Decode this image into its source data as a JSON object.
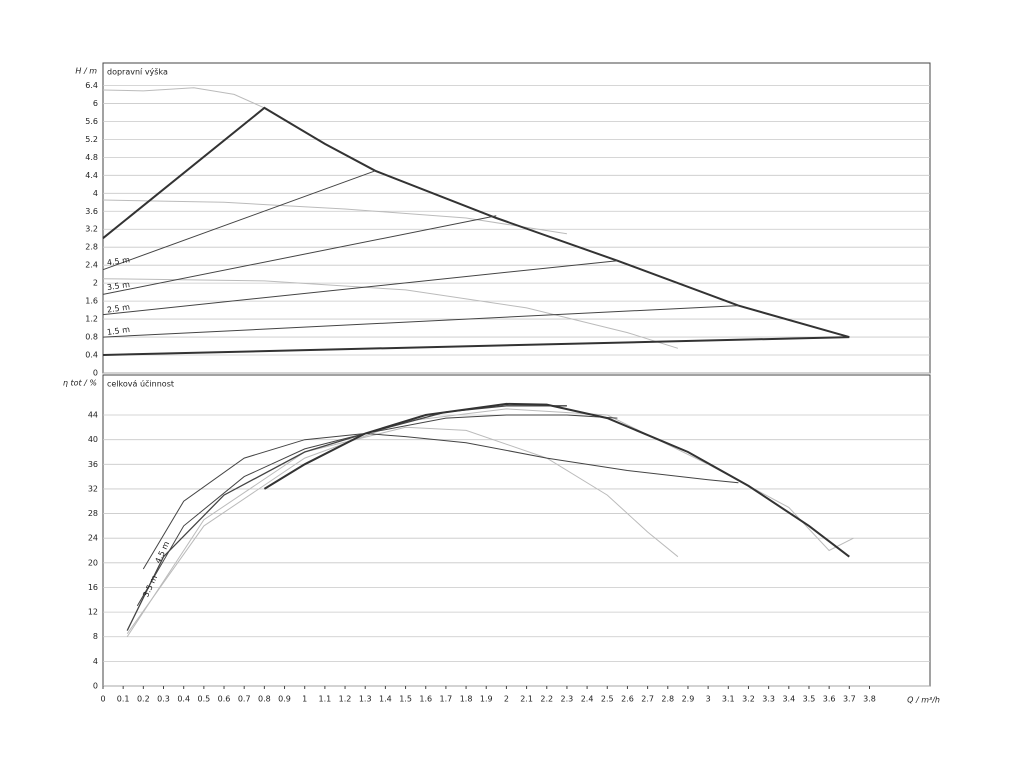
{
  "chart_data": [
    {
      "type": "line",
      "title": "dopravní výška",
      "y_label": "H / m",
      "xlim": [
        0,
        4.1
      ],
      "ylim": [
        0,
        6.9
      ],
      "yticks": [
        0,
        0.4,
        0.8,
        1.2,
        1.6,
        2,
        2.4,
        2.8,
        3.2,
        3.6,
        4,
        4.4,
        4.8,
        5.2,
        5.6,
        6,
        6.4
      ],
      "grid": true,
      "series": [
        {
          "color": "#bbbbbb",
          "width": 1,
          "x": [
            0,
            0.2,
            0.45,
            0.65,
            0.8
          ],
          "values": [
            6.3,
            6.28,
            6.35,
            6.2,
            5.9
          ]
        },
        {
          "color": "#bbbbbb",
          "width": 1,
          "x": [
            0,
            0.6,
            1.2,
            1.8,
            2.3
          ],
          "values": [
            3.85,
            3.8,
            3.65,
            3.45,
            3.1
          ]
        },
        {
          "color": "#bbbbbb",
          "width": 1,
          "x": [
            0,
            0.8,
            1.5,
            2.1,
            2.6,
            2.85
          ],
          "values": [
            2.1,
            2.05,
            1.85,
            1.45,
            0.9,
            0.55
          ]
        },
        {
          "color": "#333333",
          "width": 2,
          "x": [
            0,
            0.8,
            1.1,
            1.35,
            1.95,
            2.55,
            3.15,
            3.7
          ],
          "values": [
            3.0,
            5.9,
            5.1,
            4.5,
            3.45,
            2.5,
            1.5,
            0.8
          ]
        },
        {
          "color": "#444444",
          "width": 1,
          "x": [
            0,
            1.35
          ],
          "values": [
            2.3,
            4.5
          ]
        },
        {
          "color": "#444444",
          "width": 1,
          "x": [
            0,
            1.95
          ],
          "values": [
            1.75,
            3.5
          ]
        },
        {
          "color": "#444444",
          "width": 1,
          "x": [
            0,
            2.55
          ],
          "values": [
            1.3,
            2.5
          ]
        },
        {
          "color": "#444444",
          "width": 1,
          "x": [
            0,
            3.15
          ],
          "values": [
            0.8,
            1.5
          ]
        },
        {
          "color": "#333333",
          "width": 2,
          "x": [
            0,
            3.7
          ],
          "values": [
            0.4,
            0.8
          ]
        }
      ],
      "annotations": [
        {
          "text": "4.5 m",
          "x": 0.02,
          "y": 2.45
        },
        {
          "text": "3.5 m",
          "x": 0.02,
          "y": 1.9
        },
        {
          "text": "2.5 m",
          "x": 0.02,
          "y": 1.4
        },
        {
          "text": "1.5 m",
          "x": 0.02,
          "y": 0.9
        }
      ]
    },
    {
      "type": "line",
      "title": "celková účinnost",
      "y_label": "η tot / %",
      "x_label": "Q / m³/h",
      "xlim": [
        0,
        4.1
      ],
      "ylim": [
        0,
        50.5
      ],
      "yticks": [
        0,
        4,
        8,
        12,
        16,
        20,
        24,
        28,
        32,
        36,
        40,
        44
      ],
      "xticks": [
        0,
        0.1,
        0.2,
        0.3,
        0.4,
        0.5,
        0.6,
        0.7,
        0.8,
        0.9,
        1,
        1.1,
        1.2,
        1.3,
        1.4,
        1.5,
        1.6,
        1.7,
        1.8,
        1.9,
        2,
        2.1,
        2.2,
        2.3,
        2.4,
        2.5,
        2.6,
        2.7,
        2.8,
        2.9,
        3,
        3.1,
        3.2,
        3.3,
        3.4,
        3.5,
        3.6,
        3.7,
        3.8
      ],
      "grid": true,
      "series": [
        {
          "color": "#bbbbbb",
          "width": 1,
          "x": [
            0.12,
            0.5,
            1,
            1.5,
            1.8,
            2.2,
            2.5,
            2.7,
            2.85
          ],
          "values": [
            8,
            27,
            38,
            42,
            41.5,
            37,
            31,
            25,
            21
          ]
        },
        {
          "color": "#bbbbbb",
          "width": 1,
          "x": [
            0.12,
            0.5,
            1,
            1.5,
            2,
            2.5,
            3,
            3.4,
            3.6,
            3.72
          ],
          "values": [
            8.5,
            26,
            37,
            43,
            45,
            44,
            36,
            29,
            22,
            24
          ]
        },
        {
          "color": "#444444",
          "width": 1,
          "x": [
            0.2,
            0.4,
            0.7,
            1,
            1.3,
            1.5,
            1.8,
            2.2,
            2.6,
            3,
            3.15
          ],
          "values": [
            19,
            30,
            37,
            40,
            41,
            40.5,
            39.5,
            37,
            35,
            33.5,
            33
          ]
        },
        {
          "color": "#444444",
          "width": 1,
          "x": [
            0.17,
            0.4,
            0.7,
            1,
            1.3,
            1.7,
            2,
            2.3,
            2.55
          ],
          "values": [
            13,
            26,
            34,
            38.5,
            41,
            43.5,
            44,
            44,
            43.5
          ]
        },
        {
          "color": "#444444",
          "width": 1.3,
          "x": [
            0.12,
            0.3,
            0.6,
            1,
            1.3,
            1.7,
            2,
            2.3
          ],
          "values": [
            9,
            21,
            31,
            38,
            41,
            44.5,
            45.5,
            45.5
          ]
        },
        {
          "color": "#333333",
          "width": 2,
          "x": [
            0.8,
            1,
            1.3,
            1.6,
            2,
            2.2,
            2.5,
            2.9,
            3.2,
            3.5,
            3.7
          ],
          "values": [
            32,
            36,
            41,
            44,
            45.8,
            45.7,
            43.5,
            38,
            32.5,
            26,
            21
          ]
        }
      ],
      "annotations": [
        {
          "text": "4.5 m",
          "x": 0.27,
          "y": 20
        },
        {
          "text": "3.5 m",
          "x": 0.21,
          "y": 14.5
        }
      ]
    }
  ]
}
